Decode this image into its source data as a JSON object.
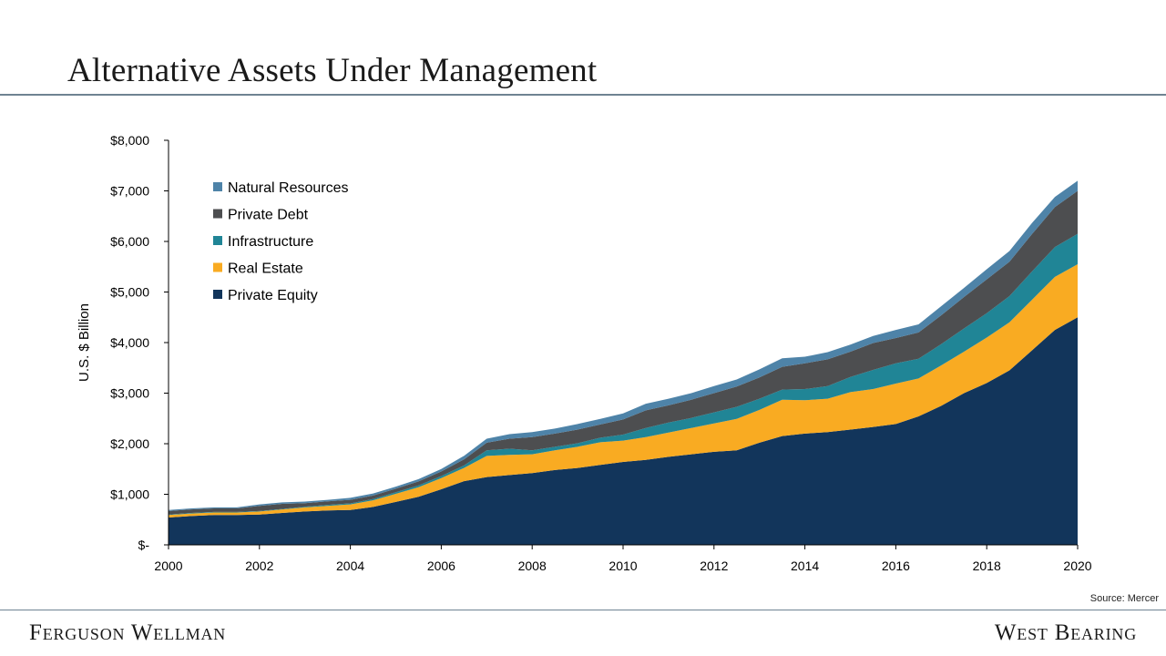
{
  "header": {
    "title": "Alternative Assets Under Management"
  },
  "footer": {
    "source": "Source: Mercer",
    "brand_left": "Ferguson Wellman",
    "brand_right": "West Bearing"
  },
  "chart_data": {
    "type": "area",
    "stacked": true,
    "ylabel": "U.S. $ Billion",
    "xlabel": "",
    "xlim": [
      2000,
      2020
    ],
    "ylim": [
      0,
      8000
    ],
    "x_ticks": [
      "2000",
      "2002",
      "2004",
      "2006",
      "2008",
      "2010",
      "2012",
      "2014",
      "2016",
      "2018",
      "2020"
    ],
    "y_ticks": [
      {
        "value": 0,
        "label": "$-"
      },
      {
        "value": 1000,
        "label": "$1,000"
      },
      {
        "value": 2000,
        "label": "$2,000"
      },
      {
        "value": 3000,
        "label": "$3,000"
      },
      {
        "value": 4000,
        "label": "$4,000"
      },
      {
        "value": 5000,
        "label": "$5,000"
      },
      {
        "value": 6000,
        "label": "$6,000"
      },
      {
        "value": 7000,
        "label": "$7,000"
      },
      {
        "value": 8000,
        "label": "$8,000"
      }
    ],
    "legend_position": "top-left",
    "x": [
      2000,
      2000.5,
      2001,
      2001.5,
      2002,
      2002.5,
      2003,
      2003.5,
      2004,
      2004.5,
      2005,
      2005.5,
      2006,
      2006.5,
      2007,
      2007.5,
      2008,
      2008.5,
      2009,
      2009.5,
      2010,
      2010.5,
      2011,
      2011.5,
      2012,
      2012.5,
      2013,
      2013.5,
      2014,
      2014.5,
      2015,
      2015.5,
      2016,
      2016.5,
      2017,
      2017.5,
      2018,
      2018.5,
      2019,
      2019.5,
      2020
    ],
    "series": [
      {
        "name": "Private Equity",
        "color": "#12355b",
        "values": [
          540,
          570,
          590,
          590,
          600,
          630,
          660,
          680,
          690,
          750,
          850,
          950,
          1100,
          1260,
          1340,
          1380,
          1420,
          1480,
          1520,
          1580,
          1640,
          1680,
          1740,
          1790,
          1840,
          1870,
          2020,
          2150,
          2200,
          2230,
          2280,
          2330,
          2390,
          2540,
          2750,
          3000,
          3200,
          3450,
          3850,
          4250,
          4500
        ]
      },
      {
        "name": "Real Estate",
        "color": "#f9ab22",
        "values": [
          50,
          50,
          50,
          50,
          60,
          70,
          80,
          90,
          110,
          130,
          160,
          190,
          220,
          260,
          420,
          400,
          370,
          390,
          420,
          450,
          420,
          450,
          480,
          520,
          560,
          620,
          650,
          720,
          660,
          660,
          740,
          750,
          800,
          750,
          800,
          820,
          900,
          950,
          1000,
          1050,
          1050
        ]
      },
      {
        "name": "Infrastructure",
        "color": "#208596",
        "values": [
          10,
          10,
          10,
          10,
          10,
          10,
          15,
          20,
          20,
          25,
          30,
          35,
          40,
          50,
          110,
          120,
          80,
          70,
          70,
          90,
          120,
          180,
          200,
          200,
          220,
          240,
          220,
          200,
          220,
          250,
          300,
          380,
          400,
          390,
          420,
          460,
          480,
          520,
          560,
          590,
          600
        ]
      },
      {
        "name": "Private Debt",
        "color": "#4d4e50",
        "values": [
          70,
          70,
          70,
          70,
          100,
          100,
          70,
          70,
          70,
          70,
          70,
          80,
          90,
          120,
          150,
          200,
          260,
          260,
          270,
          260,
          300,
          350,
          340,
          360,
          380,
          400,
          420,
          450,
          510,
          530,
          500,
          530,
          500,
          520,
          570,
          620,
          670,
          680,
          740,
          790,
          850
        ]
      },
      {
        "name": "Natural Resources",
        "color": "#4e83a8",
        "values": [
          20,
          20,
          20,
          20,
          30,
          30,
          30,
          30,
          40,
          40,
          40,
          45,
          50,
          70,
          80,
          90,
          100,
          100,
          110,
          110,
          120,
          130,
          130,
          130,
          140,
          140,
          160,
          170,
          130,
          140,
          140,
          140,
          160,
          160,
          180,
          180,
          200,
          210,
          220,
          200,
          200
        ]
      }
    ]
  }
}
